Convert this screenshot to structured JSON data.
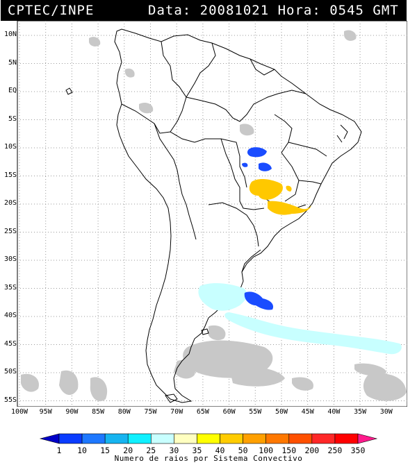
{
  "header": {
    "left": "CPTEC/INPE",
    "right": "Data: 20081021 Hora: 0545 GMT"
  },
  "map": {
    "lat_labels": [
      "10N",
      "5N",
      "EQ",
      "5S",
      "10S",
      "15S",
      "20S",
      "25S",
      "30S",
      "35S",
      "40S",
      "45S",
      "50S",
      "55S"
    ],
    "lon_labels": [
      "100W",
      "95W",
      "90W",
      "85W",
      "80W",
      "75W",
      "70W",
      "65W",
      "60W",
      "55W",
      "50W",
      "45W",
      "40W",
      "35W",
      "30W"
    ],
    "grid": true,
    "background": "#ffffff",
    "coastline_color": "#000000",
    "cloud_color": "#c8c8c8"
  },
  "colorbar": {
    "labels": [
      "1",
      "10",
      "15",
      "20",
      "25",
      "30",
      "35",
      "40",
      "50",
      "100",
      "150",
      "200",
      "250",
      "350"
    ],
    "colors": [
      "#0000c8",
      "#0a3cff",
      "#1e78ff",
      "#16b4f0",
      "#10f0ff",
      "#c8ffff",
      "#ffffc0",
      "#ffff00",
      "#ffcc00",
      "#ffa000",
      "#ff7800",
      "#ff5000",
      "#ff2828",
      "#ff0000",
      "#ff1a8c"
    ],
    "title": "Numero de raios por Sistema Convectivo"
  },
  "systems": [
    {
      "color": "#1a4cff"
    },
    {
      "color": "#1a4cff"
    },
    {
      "color": "#ffc800"
    },
    {
      "color": "#c8ffff"
    },
    {
      "color": "#1a4cff"
    }
  ]
}
